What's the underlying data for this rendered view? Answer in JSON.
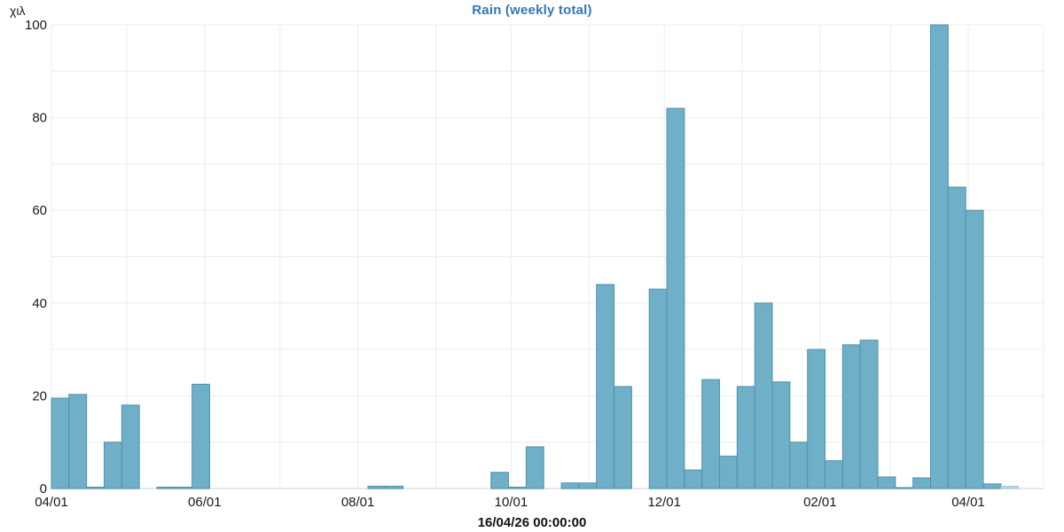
{
  "page": {
    "background": "#ffffff"
  },
  "header": {
    "title": "Rain (weekly total)"
  },
  "colors": {
    "title": "#3477b8",
    "bar_fill": "#6fafc7",
    "bar_border": "#4f92ac",
    "bar_fill_light": "#bcd8e6",
    "bar_border_light": "#a2c7da",
    "gridline": "#ececec",
    "axis_line": "#dde1e4",
    "text": "#1a1a1a"
  },
  "chart_data": {
    "type": "bar",
    "title": "Rain (weekly total)",
    "ylabel": "χιλ",
    "xlabel": "",
    "footer_timestamp": "16/04/26 00:00:00",
    "ylim": [
      0,
      100
    ],
    "y_label_ticks": [
      0,
      20,
      40,
      60,
      80,
      100
    ],
    "y_gridline_step": 10,
    "grid": true,
    "legend": false,
    "x_axis_type": "time",
    "x_range": [
      "2025-04-01",
      "2026-05-01"
    ],
    "x_ticks": [
      {
        "label": "04/01",
        "day": 0
      },
      {
        "label": "06/01",
        "day": 61
      },
      {
        "label": "08/01",
        "day": 122
      },
      {
        "label": "10/01",
        "day": 183
      },
      {
        "label": "12/01",
        "day": 244
      },
      {
        "label": "02/01",
        "day": 306
      },
      {
        "label": "04/01",
        "day": 365
      }
    ],
    "month_gridline_days": [
      0,
      30,
      61,
      91,
      122,
      153,
      183,
      214,
      244,
      275,
      306,
      334,
      365,
      395
    ],
    "bucket": "weekly",
    "series": [
      {
        "name": "Rain (weekly total)",
        "unit": "χιλ",
        "light_point_index": 54,
        "points": [
          [
            "2025-04-01",
            19.5
          ],
          [
            "2025-04-08",
            20.3
          ],
          [
            "2025-04-15",
            0.3
          ],
          [
            "2025-04-22",
            10
          ],
          [
            "2025-04-29",
            18
          ],
          [
            "2025-05-06",
            0
          ],
          [
            "2025-05-13",
            0.3
          ],
          [
            "2025-05-20",
            0.3
          ],
          [
            "2025-05-27",
            22.5
          ],
          [
            "2025-06-03",
            0
          ],
          [
            "2025-06-10",
            0
          ],
          [
            "2025-06-17",
            0
          ],
          [
            "2025-06-24",
            0
          ],
          [
            "2025-07-01",
            0
          ],
          [
            "2025-07-08",
            0
          ],
          [
            "2025-07-15",
            0
          ],
          [
            "2025-07-22",
            0
          ],
          [
            "2025-07-29",
            0
          ],
          [
            "2025-08-05",
            0.5
          ],
          [
            "2025-08-12",
            0.5
          ],
          [
            "2025-08-19",
            0
          ],
          [
            "2025-08-26",
            0
          ],
          [
            "2025-09-02",
            0
          ],
          [
            "2025-09-09",
            0
          ],
          [
            "2025-09-16",
            0
          ],
          [
            "2025-09-23",
            3.5
          ],
          [
            "2025-09-30",
            0.3
          ],
          [
            "2025-10-07",
            9
          ],
          [
            "2025-10-14",
            0
          ],
          [
            "2025-10-21",
            1.2
          ],
          [
            "2025-10-28",
            1.2
          ],
          [
            "2025-11-04",
            44
          ],
          [
            "2025-11-11",
            22
          ],
          [
            "2025-11-18",
            0
          ],
          [
            "2025-11-25",
            43
          ],
          [
            "2025-12-02",
            82
          ],
          [
            "2025-12-09",
            4
          ],
          [
            "2025-12-16",
            23.5
          ],
          [
            "2025-12-23",
            7
          ],
          [
            "2025-12-30",
            22
          ],
          [
            "2026-01-06",
            40
          ],
          [
            "2026-01-13",
            23
          ],
          [
            "2026-01-20",
            10
          ],
          [
            "2026-01-27",
            30
          ],
          [
            "2026-02-03",
            6
          ],
          [
            "2026-02-10",
            31
          ],
          [
            "2026-02-17",
            32
          ],
          [
            "2026-02-24",
            2.5
          ],
          [
            "2026-03-03",
            0.2
          ],
          [
            "2026-03-10",
            2.3
          ],
          [
            "2026-03-17",
            100
          ],
          [
            "2026-03-24",
            65
          ],
          [
            "2026-03-31",
            60
          ],
          [
            "2026-04-07",
            1
          ],
          [
            "2026-04-14",
            0.5
          ]
        ]
      }
    ]
  }
}
